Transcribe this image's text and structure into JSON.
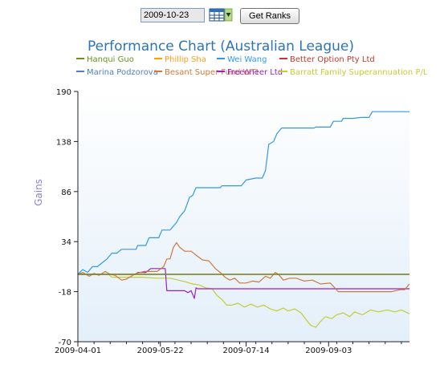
{
  "controls": {
    "date_value": "2009-10-23",
    "calendar_icon": "calendar-grid-icon",
    "get_ranks_label": "Get Ranks"
  },
  "chart_data": {
    "type": "line",
    "title": "Performance Chart (Australian League)",
    "ylabel": "Gains",
    "xlabel": "",
    "ylim": [
      -70,
      190
    ],
    "yticks": [
      "190",
      "138",
      "86",
      "34",
      "-18",
      "-70"
    ],
    "x_range": [
      "2009-04-01",
      "2009-10-23"
    ],
    "xticks": [
      "2009-04-01",
      "2009-05-22",
      "2009-07-14",
      "2009-09-03"
    ],
    "grid": false,
    "legend_position": "top",
    "background_gradient": [
      "#ffffff",
      "#e3eff9"
    ],
    "series": [
      {
        "name": "Hanqui Guo",
        "color": "#6b8e23",
        "points": [
          [
            "2009-04-01",
            0
          ],
          [
            "2009-10-23",
            0
          ]
        ]
      },
      {
        "name": "Phillip Sha",
        "color": "#ff9c1a",
        "points": [
          [
            "2009-04-01",
            0
          ],
          [
            "2009-10-23",
            0
          ]
        ]
      },
      {
        "name": "Wei Wang",
        "color": "#3399e6",
        "points": [
          [
            "2009-04-01",
            0
          ],
          [
            "2009-04-04",
            5
          ],
          [
            "2009-04-07",
            2
          ],
          [
            "2009-04-10",
            8
          ],
          [
            "2009-04-13",
            8
          ],
          [
            "2009-04-16",
            12
          ],
          [
            "2009-04-19",
            16
          ],
          [
            "2009-04-22",
            22
          ],
          [
            "2009-04-25",
            22
          ],
          [
            "2009-04-28",
            26
          ],
          [
            "2009-05-07",
            26
          ],
          [
            "2009-05-08",
            30
          ],
          [
            "2009-05-13",
            30
          ],
          [
            "2009-05-15",
            38
          ],
          [
            "2009-05-21",
            38
          ],
          [
            "2009-05-23",
            46
          ],
          [
            "2009-05-28",
            46
          ],
          [
            "2009-06-01",
            54
          ],
          [
            "2009-06-03",
            60
          ],
          [
            "2009-06-06",
            66
          ],
          [
            "2009-06-09",
            80
          ],
          [
            "2009-06-11",
            82
          ],
          [
            "2009-06-13",
            90
          ],
          [
            "2009-06-28",
            90
          ],
          [
            "2009-06-29",
            92
          ],
          [
            "2009-07-11",
            92
          ],
          [
            "2009-07-14",
            98
          ],
          [
            "2009-07-20",
            100
          ],
          [
            "2009-07-24",
            100
          ],
          [
            "2009-07-26",
            108
          ],
          [
            "2009-07-28",
            135
          ],
          [
            "2009-07-31",
            138
          ],
          [
            "2009-08-02",
            146
          ],
          [
            "2009-08-05",
            152
          ],
          [
            "2009-08-25",
            152
          ],
          [
            "2009-08-26",
            153
          ],
          [
            "2009-09-04",
            153
          ],
          [
            "2009-09-06",
            159
          ],
          [
            "2009-09-11",
            159
          ],
          [
            "2009-09-12",
            162
          ],
          [
            "2009-09-18",
            162
          ],
          [
            "2009-09-23",
            163
          ],
          [
            "2009-09-28",
            163
          ],
          [
            "2009-09-30",
            169
          ],
          [
            "2009-10-23",
            169
          ]
        ]
      },
      {
        "name": "Better Option Pty Ltd",
        "color": "#c0392b",
        "points": [
          [
            "2009-04-01",
            0
          ],
          [
            "2009-10-23",
            0
          ]
        ]
      },
      {
        "name": "Marina Podzorova",
        "color": "#4f7ec2",
        "points": [
          [
            "2009-04-01",
            0
          ],
          [
            "2009-10-23",
            0
          ]
        ]
      },
      {
        "name": "Besant Super Fund WTI",
        "color": "#cc7a3e",
        "points": [
          [
            "2009-04-01",
            0
          ],
          [
            "2009-04-04",
            2
          ],
          [
            "2009-04-08",
            -2
          ],
          [
            "2009-04-11",
            1
          ],
          [
            "2009-04-14",
            -1
          ],
          [
            "2009-04-18",
            3
          ],
          [
            "2009-04-21",
            0
          ],
          [
            "2009-04-24",
            -1
          ],
          [
            "2009-04-28",
            -6
          ],
          [
            "2009-05-01",
            -5
          ],
          [
            "2009-05-04",
            -2
          ],
          [
            "2009-05-07",
            1
          ],
          [
            "2009-05-12",
            3
          ],
          [
            "2009-05-20",
            3
          ],
          [
            "2009-05-24",
            8
          ],
          [
            "2009-05-26",
            16
          ],
          [
            "2009-05-28",
            16
          ],
          [
            "2009-05-30",
            28
          ],
          [
            "2009-06-01",
            33
          ],
          [
            "2009-06-03",
            28
          ],
          [
            "2009-06-06",
            24
          ],
          [
            "2009-06-10",
            24
          ],
          [
            "2009-06-13",
            20
          ],
          [
            "2009-06-17",
            15
          ],
          [
            "2009-06-21",
            14
          ],
          [
            "2009-06-25",
            6
          ],
          [
            "2009-06-28",
            2
          ],
          [
            "2009-07-01",
            -3
          ],
          [
            "2009-07-04",
            -6
          ],
          [
            "2009-07-07",
            -4
          ],
          [
            "2009-07-10",
            -9
          ],
          [
            "2009-07-14",
            -9
          ],
          [
            "2009-07-18",
            -7
          ],
          [
            "2009-07-22",
            -8
          ],
          [
            "2009-07-26",
            -2
          ],
          [
            "2009-07-29",
            -4
          ],
          [
            "2009-08-01",
            2
          ],
          [
            "2009-08-03",
            0
          ],
          [
            "2009-08-06",
            -6
          ],
          [
            "2009-08-10",
            -4
          ],
          [
            "2009-08-14",
            -4
          ],
          [
            "2009-08-19",
            -7
          ],
          [
            "2009-08-24",
            -6
          ],
          [
            "2009-08-29",
            -10
          ],
          [
            "2009-09-04",
            -9
          ],
          [
            "2009-09-09",
            -18
          ],
          [
            "2009-10-12",
            -18
          ],
          [
            "2009-10-17",
            -16
          ],
          [
            "2009-10-20",
            -16
          ],
          [
            "2009-10-23",
            -10
          ]
        ]
      },
      {
        "name": "Freeoneer Ltd",
        "color": "#9c1fc2",
        "points": [
          [
            "2009-04-01",
            0
          ],
          [
            "2009-05-07",
            0
          ],
          [
            "2009-05-08",
            2
          ],
          [
            "2009-05-13",
            2
          ],
          [
            "2009-05-16",
            6
          ],
          [
            "2009-05-25",
            6
          ],
          [
            "2009-05-26",
            -17
          ],
          [
            "2009-06-06",
            -17
          ],
          [
            "2009-06-08",
            -19
          ],
          [
            "2009-06-10",
            -17
          ],
          [
            "2009-06-12",
            -25
          ],
          [
            "2009-06-13",
            -14
          ],
          [
            "2009-06-14",
            -15
          ],
          [
            "2009-10-23",
            -15
          ]
        ]
      },
      {
        "name": "Barratt Family Superannuation P/L",
        "color": "#c4cc33",
        "points": [
          [
            "2009-04-01",
            0
          ],
          [
            "2009-04-20",
            0
          ],
          [
            "2009-04-22",
            -3
          ],
          [
            "2009-05-10",
            -3
          ],
          [
            "2009-05-20",
            -4
          ],
          [
            "2009-05-28",
            -4
          ],
          [
            "2009-06-02",
            -6
          ],
          [
            "2009-06-07",
            -8
          ],
          [
            "2009-06-11",
            -10
          ],
          [
            "2009-06-15",
            -11
          ],
          [
            "2009-06-19",
            -14
          ],
          [
            "2009-06-23",
            -15
          ],
          [
            "2009-06-26",
            -22
          ],
          [
            "2009-06-29",
            -26
          ],
          [
            "2009-07-02",
            -32
          ],
          [
            "2009-07-05",
            -32
          ],
          [
            "2009-07-09",
            -30
          ],
          [
            "2009-07-13",
            -34
          ],
          [
            "2009-07-17",
            -31
          ],
          [
            "2009-07-21",
            -34
          ],
          [
            "2009-07-25",
            -32
          ],
          [
            "2009-07-29",
            -36
          ],
          [
            "2009-08-02",
            -38
          ],
          [
            "2009-08-06",
            -35
          ],
          [
            "2009-08-09",
            -38
          ],
          [
            "2009-08-13",
            -36
          ],
          [
            "2009-08-17",
            -40
          ],
          [
            "2009-08-20",
            -47
          ],
          [
            "2009-08-23",
            -53
          ],
          [
            "2009-08-26",
            -55
          ],
          [
            "2009-08-29",
            -49
          ],
          [
            "2009-09-01",
            -44
          ],
          [
            "2009-09-05",
            -46
          ],
          [
            "2009-09-08",
            -42
          ],
          [
            "2009-09-12",
            -40
          ],
          [
            "2009-09-16",
            -44
          ],
          [
            "2009-09-19",
            -39
          ],
          [
            "2009-09-24",
            -42
          ],
          [
            "2009-09-29",
            -37
          ],
          [
            "2009-10-04",
            -39
          ],
          [
            "2009-10-09",
            -37
          ],
          [
            "2009-10-14",
            -39
          ],
          [
            "2009-10-18",
            -37
          ],
          [
            "2009-10-23",
            -41
          ]
        ]
      }
    ]
  }
}
